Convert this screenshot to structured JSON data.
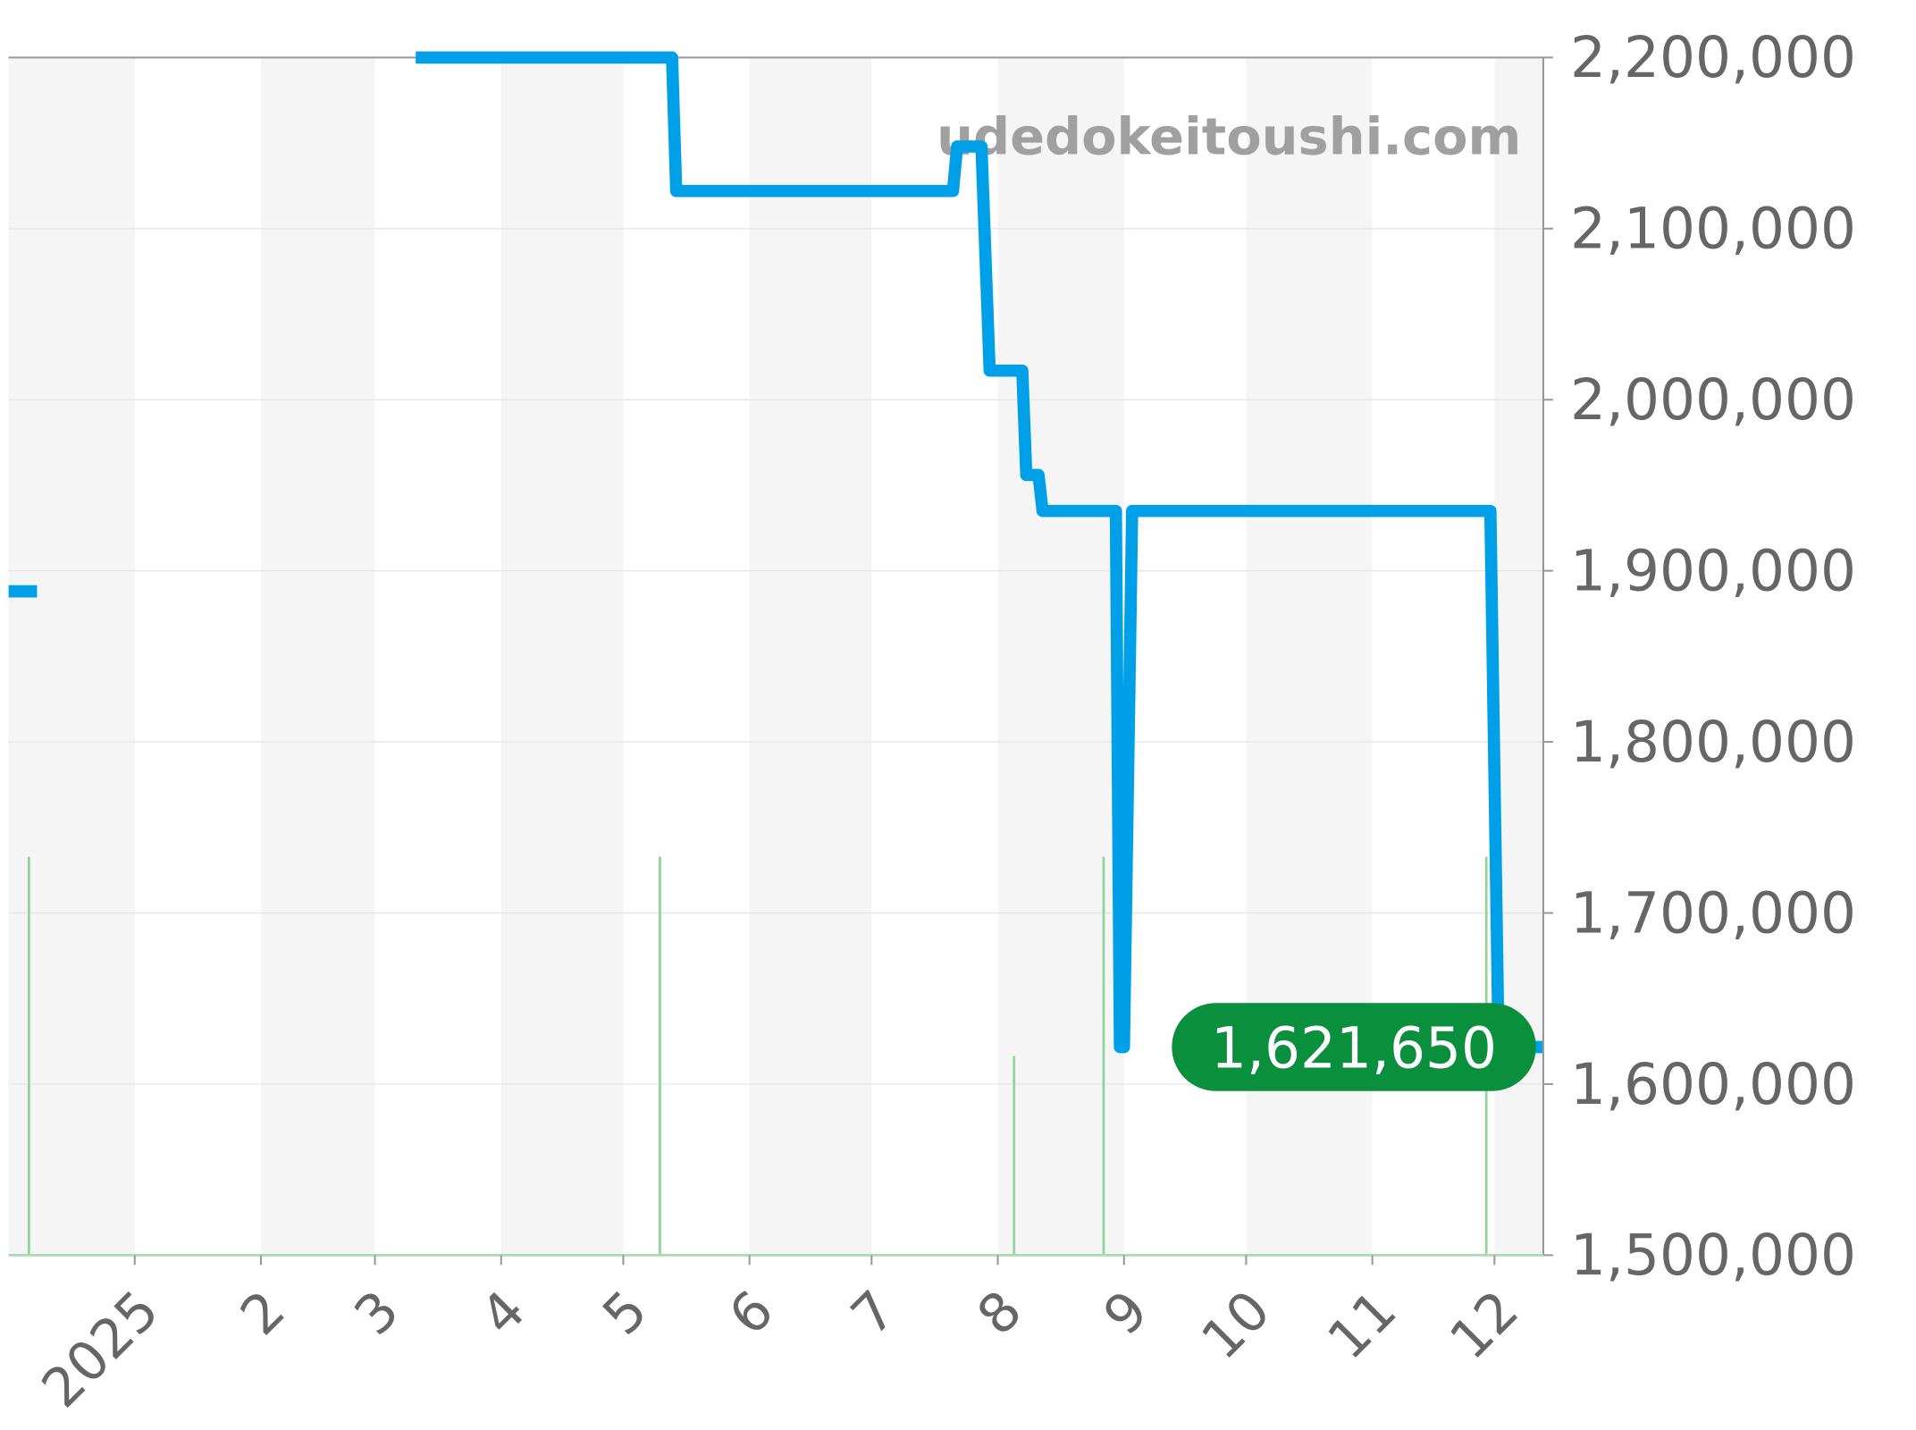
{
  "chart_data": {
    "type": "line",
    "title": "",
    "xlabel": "",
    "ylabel": "",
    "watermark": "udedokeitoushi.com",
    "xlim": [
      "2024-12-01",
      "2025-12-13"
    ],
    "ylim": [
      1500000,
      2200000
    ],
    "grid": true,
    "alternating_month_bands": true,
    "x_ticks": [
      {
        "date": "2025-01-01",
        "label": "2025"
      },
      {
        "date": "2025-02-01",
        "label": "2"
      },
      {
        "date": "2025-03-01",
        "label": "3"
      },
      {
        "date": "2025-04-01",
        "label": "4"
      },
      {
        "date": "2025-05-01",
        "label": "5"
      },
      {
        "date": "2025-06-01",
        "label": "6"
      },
      {
        "date": "2025-07-01",
        "label": "7"
      },
      {
        "date": "2025-08-01",
        "label": "8"
      },
      {
        "date": "2025-09-01",
        "label": "9"
      },
      {
        "date": "2025-10-01",
        "label": "10"
      },
      {
        "date": "2025-11-01",
        "label": "11"
      },
      {
        "date": "2025-12-01",
        "label": "12"
      }
    ],
    "y_ticks": [
      {
        "value": 2200000,
        "label": "2,200,000"
      },
      {
        "value": 2100000,
        "label": "2,100,000"
      },
      {
        "value": 2000000,
        "label": "2,000,000"
      },
      {
        "value": 1900000,
        "label": "1,900,000"
      },
      {
        "value": 1800000,
        "label": "1,800,000"
      },
      {
        "value": 1700000,
        "label": "1,700,000"
      },
      {
        "value": 1600000,
        "label": "1,600,000"
      },
      {
        "value": 1500000,
        "label": "1,500,000"
      }
    ],
    "series": [
      {
        "color": "#00a0e9",
        "segments": [
          [
            [
              "2024-12-01",
              1888000
            ],
            [
              "2024-12-08",
              1888000
            ]
          ],
          [
            [
              "2025-03-11",
              2200000
            ],
            [
              "2025-05-13",
              2200000
            ],
            [
              "2025-05-14",
              2122000
            ],
            [
              "2025-07-21",
              2122000
            ],
            [
              "2025-07-22",
              2148000
            ],
            [
              "2025-07-28",
              2148000
            ],
            [
              "2025-07-30",
              2017000
            ],
            [
              "2025-08-07",
              2017000
            ],
            [
              "2025-08-08",
              1956000
            ],
            [
              "2025-08-11",
              1956000
            ],
            [
              "2025-08-12",
              1935000
            ],
            [
              "2025-08-30",
              1935000
            ],
            [
              "2025-08-31",
              1621650
            ],
            [
              "2025-09-01",
              1621650
            ],
            [
              "2025-09-03",
              1935000
            ],
            [
              "2025-11-30",
              1935000
            ],
            [
              "2025-12-02",
              1621650
            ],
            [
              "2025-12-13",
              1621650
            ]
          ]
        ]
      }
    ],
    "volume_bars": {
      "color": "#8fd49a",
      "max": 4.3,
      "points": [
        {
          "date": "2024-12-06",
          "value": 2
        },
        {
          "date": "2025-05-10",
          "value": 2
        },
        {
          "date": "2025-08-05",
          "value": 1
        },
        {
          "date": "2025-08-27",
          "value": 2
        },
        {
          "date": "2025-11-29",
          "value": 2
        }
      ]
    },
    "last_value_badge": {
      "value": 1621650,
      "label": "1,621,650",
      "color": "#0a8f3c"
    }
  }
}
